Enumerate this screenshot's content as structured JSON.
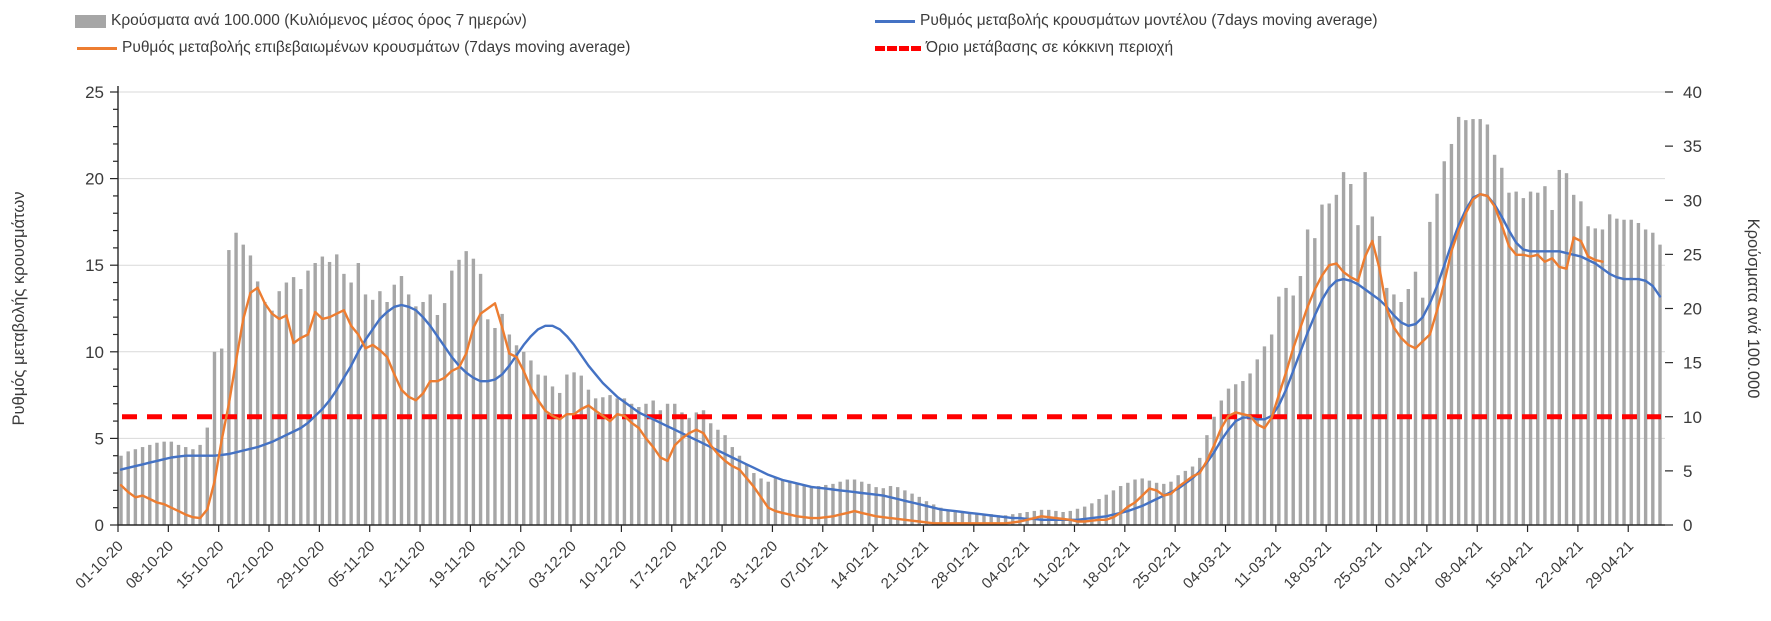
{
  "legend": {
    "bars_label": "Κρούσματα ανά 100.000 (Κυλιόμενος μέσος όρος 7 ημερών)",
    "confirmed_label": "Ρυθμός μεταβολής επιβεβαιωμένων κρουσμάτων (7days moving average)",
    "model_label": "Ρυθμός μεταβολής κρουσμάτων μοντέλου (7days moving average)",
    "threshold_label": "Όριο μετάβασης σε κόκκινη περιοχή"
  },
  "axes": {
    "left_title": "Ρυθμός μεταβολής κρουσμάτων",
    "right_title": "Κρούσματα ανά 100.000",
    "left_ticks": [
      0,
      5,
      10,
      15,
      20,
      25
    ],
    "right_ticks": [
      0,
      5,
      10,
      15,
      20,
      25,
      30,
      35,
      40
    ]
  },
  "colors": {
    "bar": "#a6a6a6",
    "confirmed_line": "#ed7d31",
    "model_line": "#4472c4",
    "threshold_line": "#ff0000",
    "gridline": "#d9d9d9",
    "axis_line": "#262626",
    "text": "#3b3b3b"
  },
  "chart_data": {
    "type": "combo (bar + line, dual axis, daily data)",
    "x_start_date": "01-10-20",
    "x_end_date": "03-05-21",
    "x_tick_labels": [
      "01-10-20",
      "08-10-20",
      "15-10-20",
      "22-10-20",
      "29-10-20",
      "05-11-20",
      "12-11-20",
      "19-11-20",
      "26-11-20",
      "03-12-20",
      "10-12-20",
      "17-12-20",
      "24-12-20",
      "31-12-20",
      "07-01-21",
      "14-01-21",
      "21-01-21",
      "28-01-21",
      "04-02-21",
      "11-02-21",
      "18-02-21",
      "25-02-21",
      "04-03-21",
      "11-03-21",
      "18-03-21",
      "25-03-21",
      "01-04-21",
      "08-04-21",
      "15-04-21",
      "22-04-21",
      "29-04-21"
    ],
    "ylim_left": [
      0,
      25
    ],
    "ylim_right": [
      0,
      40
    ],
    "grid": "horizontal only",
    "legend_position": "top",
    "threshold_value_left_axis": 6.25,
    "series": [
      {
        "name": "Κρούσματα ανά 100.000 (Κυλιόμενος μέσος όρος 7 ημερών)",
        "type": "bar",
        "axis": "right",
        "values": [
          6.4,
          6.8,
          7.0,
          7.2,
          7.4,
          7.6,
          7.7,
          7.7,
          7.4,
          7.2,
          7.0,
          7.4,
          9.0,
          16.0,
          16.3,
          25.4,
          27.0,
          25.9,
          24.9,
          22.5,
          20.6,
          19.8,
          21.6,
          22.4,
          22.9,
          21.8,
          23.5,
          24.2,
          24.8,
          24.3,
          25.0,
          23.2,
          22.4,
          24.2,
          21.3,
          20.8,
          21.6,
          20.6,
          22.2,
          23.0,
          21.3,
          20.2,
          20.6,
          21.3,
          19.4,
          20.5,
          23.5,
          24.5,
          25.3,
          24.6,
          23.2,
          19.0,
          18.2,
          19.5,
          17.6,
          16.6,
          16.0,
          15.2,
          13.9,
          13.8,
          12.8,
          12.2,
          13.9,
          14.1,
          13.8,
          12.5,
          11.7,
          11.8,
          12.0,
          11.7,
          11.7,
          11.2,
          10.9,
          11.2,
          11.5,
          10.6,
          11.2,
          11.2,
          10.4,
          9.9,
          10.4,
          10.6,
          9.4,
          8.8,
          8.3,
          7.2,
          6.4,
          5.6,
          4.8,
          4.3,
          4.0,
          4.4,
          4.2,
          4.0,
          3.8,
          3.7,
          3.6,
          3.6,
          3.7,
          3.8,
          4.0,
          4.2,
          4.2,
          4.0,
          3.8,
          3.5,
          3.4,
          3.6,
          3.5,
          3.2,
          2.9,
          2.6,
          2.2,
          1.9,
          1.6,
          1.4,
          1.3,
          1.2,
          1.2,
          1.1,
          1.0,
          1.0,
          0.9,
          0.9,
          1.0,
          1.1,
          1.2,
          1.3,
          1.4,
          1.4,
          1.3,
          1.2,
          1.3,
          1.5,
          1.7,
          2.0,
          2.4,
          2.8,
          3.2,
          3.6,
          3.9,
          4.2,
          4.3,
          4.1,
          3.9,
          3.8,
          4.0,
          4.6,
          5.0,
          5.4,
          6.2,
          8.3,
          10.0,
          11.5,
          12.6,
          13.0,
          13.3,
          14.0,
          15.3,
          16.5,
          17.6,
          21.1,
          21.9,
          21.2,
          23.0,
          27.3,
          26.5,
          29.6,
          29.7,
          30.5,
          32.6,
          31.5,
          27.7,
          32.6,
          28.5,
          26.7,
          21.9,
          21.3,
          20.6,
          21.8,
          23.4,
          21.0,
          28.0,
          30.6,
          33.6,
          35.2,
          37.7,
          37.4,
          37.5,
          37.5,
          37.0,
          34.2,
          33.0,
          30.7,
          30.8,
          30.2,
          30.8,
          30.7,
          31.3,
          29.1,
          32.8,
          32.5,
          30.5,
          29.9,
          27.6,
          27.4,
          27.3,
          28.7,
          28.3,
          28.2,
          28.2,
          27.9,
          27.3,
          27.0,
          25.9
        ]
      },
      {
        "name": "Ρυθμός μεταβολής επιβεβαιωμένων κρουσμάτων (7days moving average)",
        "type": "line",
        "axis": "left",
        "values": [
          2.3,
          1.9,
          1.6,
          1.7,
          1.5,
          1.3,
          1.2,
          1.0,
          0.8,
          0.6,
          0.45,
          0.4,
          0.9,
          2.5,
          4.9,
          7.0,
          9.5,
          11.9,
          13.4,
          13.7,
          12.8,
          12.2,
          11.9,
          12.1,
          10.5,
          10.8,
          11.0,
          12.3,
          11.9,
          12.0,
          12.2,
          12.4,
          11.5,
          11.0,
          10.2,
          10.4,
          10.1,
          9.7,
          8.7,
          7.8,
          7.4,
          7.2,
          7.6,
          8.3,
          8.3,
          8.5,
          8.9,
          9.1,
          9.9,
          11.4,
          12.2,
          12.5,
          12.8,
          11.4,
          9.9,
          9.7,
          8.9,
          7.9,
          7.2,
          6.6,
          6.3,
          6.1,
          6.4,
          6.4,
          6.7,
          6.9,
          6.6,
          6.3,
          6.0,
          6.4,
          6.3,
          5.9,
          5.6,
          5.0,
          4.5,
          3.9,
          3.7,
          4.6,
          5.0,
          5.3,
          5.5,
          5.3,
          4.6,
          4.1,
          3.7,
          3.4,
          3.2,
          2.7,
          2.2,
          1.6,
          1.0,
          0.8,
          0.7,
          0.6,
          0.5,
          0.45,
          0.4,
          0.4,
          0.45,
          0.5,
          0.6,
          0.7,
          0.8,
          0.7,
          0.6,
          0.5,
          0.45,
          0.4,
          0.35,
          0.3,
          0.25,
          0.2,
          0.15,
          0.1,
          0.1,
          0.1,
          0.1,
          0.1,
          0.1,
          0.1,
          0.1,
          0.1,
          0.1,
          0.1,
          0.15,
          0.2,
          0.3,
          0.4,
          0.5,
          0.45,
          0.4,
          0.35,
          0.3,
          0.2,
          0.2,
          0.25,
          0.3,
          0.3,
          0.45,
          0.7,
          1.05,
          1.3,
          1.7,
          2.1,
          2.0,
          1.7,
          1.8,
          2.2,
          2.5,
          2.8,
          3.0,
          3.7,
          4.6,
          5.6,
          6.3,
          6.5,
          6.4,
          6.3,
          5.8,
          5.6,
          6.2,
          7.5,
          8.8,
          10.2,
          11.4,
          12.6,
          13.6,
          14.4,
          15.0,
          15.1,
          14.6,
          14.3,
          14.1,
          15.5,
          16.4,
          14.8,
          12.5,
          11.4,
          10.8,
          10.4,
          10.2,
          10.6,
          11.0,
          12.4,
          14.0,
          15.8,
          17.0,
          18.0,
          18.8,
          19.1,
          19.0,
          18.4,
          17.3,
          16.1,
          15.6,
          15.6,
          15.5,
          15.6,
          15.2,
          15.4,
          14.9,
          14.8,
          16.6,
          16.4,
          15.5,
          15.3,
          15.2,
          null,
          null,
          null,
          null,
          null,
          null,
          null,
          null
        ]
      },
      {
        "name": "Ρυθμός μεταβολής κρουσμάτων μοντέλου (7days moving average)",
        "type": "line",
        "axis": "left",
        "values": [
          3.2,
          3.3,
          3.4,
          3.5,
          3.6,
          3.7,
          3.8,
          3.9,
          3.95,
          4.0,
          4.0,
          4.0,
          4.0,
          4.0,
          4.05,
          4.1,
          4.2,
          4.3,
          4.4,
          4.5,
          4.65,
          4.8,
          5.0,
          5.2,
          5.4,
          5.6,
          5.9,
          6.3,
          6.7,
          7.2,
          7.8,
          8.5,
          9.2,
          10.0,
          10.7,
          11.3,
          11.9,
          12.3,
          12.6,
          12.7,
          12.6,
          12.4,
          12.0,
          11.5,
          10.9,
          10.3,
          9.7,
          9.2,
          8.8,
          8.5,
          8.3,
          8.3,
          8.4,
          8.7,
          9.2,
          9.8,
          10.4,
          10.9,
          11.3,
          11.5,
          11.5,
          11.3,
          10.9,
          10.4,
          9.8,
          9.2,
          8.7,
          8.2,
          7.8,
          7.4,
          7.1,
          6.8,
          6.5,
          6.3,
          6.1,
          5.9,
          5.7,
          5.5,
          5.3,
          5.1,
          4.9,
          4.7,
          4.5,
          4.3,
          4.1,
          3.9,
          3.7,
          3.5,
          3.3,
          3.1,
          2.9,
          2.75,
          2.6,
          2.5,
          2.4,
          2.3,
          2.2,
          2.15,
          2.1,
          2.05,
          2.0,
          1.95,
          1.9,
          1.85,
          1.8,
          1.75,
          1.7,
          1.6,
          1.5,
          1.4,
          1.3,
          1.2,
          1.1,
          1.0,
          0.9,
          0.85,
          0.8,
          0.75,
          0.7,
          0.65,
          0.6,
          0.55,
          0.5,
          0.45,
          0.4,
          0.4,
          0.35,
          0.35,
          0.3,
          0.3,
          0.3,
          0.3,
          0.3,
          0.3,
          0.35,
          0.4,
          0.45,
          0.5,
          0.6,
          0.7,
          0.8,
          0.95,
          1.1,
          1.3,
          1.5,
          1.7,
          1.9,
          2.1,
          2.4,
          2.7,
          3.1,
          3.6,
          4.2,
          4.9,
          5.5,
          6.0,
          6.2,
          6.2,
          6.1,
          6.1,
          6.3,
          6.9,
          7.8,
          8.9,
          10.0,
          11.1,
          12.1,
          13.0,
          13.7,
          14.1,
          14.2,
          14.1,
          13.9,
          13.6,
          13.3,
          13.0,
          12.6,
          12.1,
          11.7,
          11.5,
          11.6,
          12.0,
          12.8,
          13.8,
          15.0,
          16.2,
          17.3,
          18.2,
          18.9,
          19.1,
          19.0,
          18.5,
          17.8,
          17.0,
          16.3,
          15.9,
          15.8,
          15.8,
          15.8,
          15.8,
          15.8,
          15.7,
          15.6,
          15.5,
          15.3,
          15.1,
          14.8,
          14.5,
          14.3,
          14.2,
          14.2,
          14.2,
          14.1,
          13.8,
          13.2
        ]
      },
      {
        "name": "Όριο μετάβασης σε κόκκινη περιοχή",
        "type": "dashed-horizontal-line",
        "axis": "left",
        "value": 6.25
      }
    ]
  }
}
